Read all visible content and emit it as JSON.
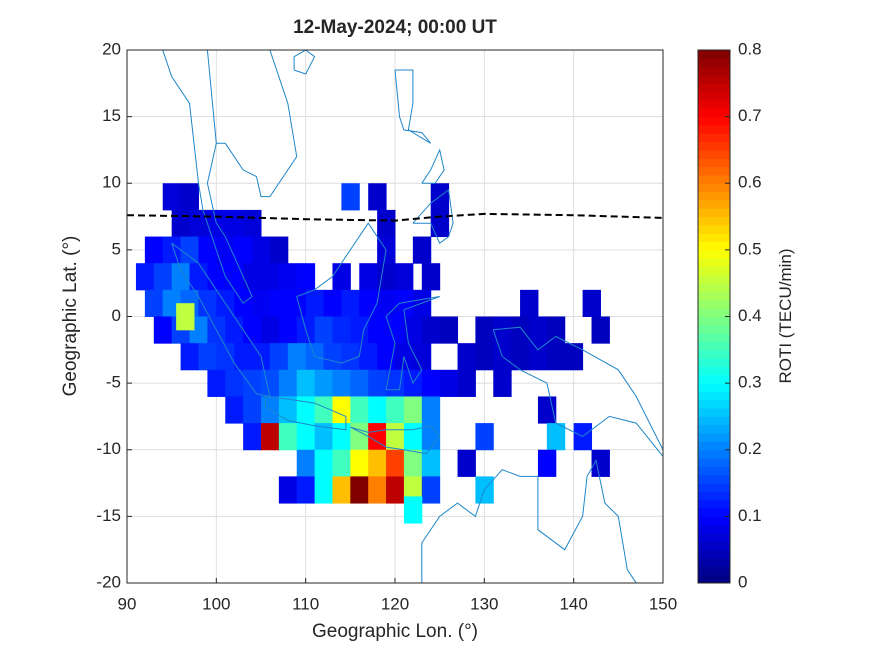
{
  "chart_data": {
    "type": "heatmap",
    "title": "12-May-2024; 00:00 UT",
    "x_label": "Geographic Lon. (°)",
    "y_label": "Geographic Lat. (°)",
    "colorbar_label": "ROTI (TECU/min)",
    "colormap": "jet",
    "xlim": [
      90,
      150
    ],
    "xticks": [
      90,
      100,
      110,
      120,
      130,
      140,
      150
    ],
    "ylim": [
      -20,
      20
    ],
    "yticks": [
      -20,
      -15,
      -10,
      -5,
      0,
      5,
      10,
      15,
      20
    ],
    "clim": [
      0,
      0.8
    ],
    "cticks": [
      0,
      0.1,
      0.2,
      0.3,
      0.4,
      0.5,
      0.6,
      0.7,
      0.8
    ],
    "grid": true,
    "x": [
      95,
      97,
      115,
      118,
      125,
      96,
      98,
      100,
      102,
      104,
      119,
      125,
      93,
      95,
      97,
      99,
      101,
      103,
      105,
      107,
      119,
      123,
      92,
      94,
      96,
      98,
      100,
      102,
      104,
      106,
      108,
      110,
      114,
      117,
      119,
      121,
      124,
      93,
      95,
      97,
      99,
      101,
      103,
      105,
      107,
      109,
      111,
      113,
      115,
      117,
      119,
      121,
      123,
      135,
      142,
      94,
      96,
      98,
      100,
      102,
      104,
      106,
      108,
      110,
      112,
      114,
      116,
      118,
      120,
      122,
      124,
      126,
      130,
      132,
      134,
      136,
      138,
      143,
      97,
      99,
      101,
      103,
      105,
      107,
      109,
      111,
      113,
      115,
      117,
      119,
      121,
      123,
      128,
      130,
      132,
      134,
      136,
      138,
      140,
      100,
      102,
      104,
      106,
      108,
      110,
      112,
      114,
      116,
      118,
      120,
      122,
      124,
      126,
      128,
      132,
      102,
      104,
      106,
      108,
      110,
      112,
      114,
      116,
      118,
      120,
      122,
      124,
      137,
      104,
      106,
      108,
      110,
      112,
      114,
      116,
      118,
      120,
      122,
      124,
      130,
      138,
      141,
      110,
      112,
      114,
      116,
      118,
      120,
      122,
      124,
      128,
      137,
      143,
      108,
      110,
      112,
      114,
      116,
      118,
      120,
      122,
      124,
      130,
      122,
      96.5
    ],
    "y": [
      9,
      9,
      9,
      9,
      9,
      7,
      7,
      7,
      7,
      7,
      7,
      7,
      5,
      5,
      5,
      5,
      5,
      5,
      5,
      5,
      5,
      5,
      3,
      3,
      3,
      3,
      3,
      3,
      3,
      3,
      3,
      3,
      3,
      3,
      3,
      3,
      3,
      1,
      1,
      1,
      1,
      1,
      1,
      1,
      1,
      1,
      1,
      1,
      1,
      1,
      1,
      1,
      1,
      1,
      1,
      -1,
      -1,
      -1,
      -1,
      -1,
      -1,
      -1,
      -1,
      -1,
      -1,
      -1,
      -1,
      -1,
      -1,
      -1,
      -1,
      -1,
      -1,
      -1,
      -1,
      -1,
      -1,
      -1,
      -3,
      -3,
      -3,
      -3,
      -3,
      -3,
      -3,
      -3,
      -3,
      -3,
      -3,
      -3,
      -3,
      -3,
      -3,
      -3,
      -3,
      -3,
      -3,
      -3,
      -3,
      -5,
      -5,
      -5,
      -5,
      -5,
      -5,
      -5,
      -5,
      -5,
      -5,
      -5,
      -5,
      -5,
      -5,
      -5,
      -5,
      -7,
      -7,
      -7,
      -7,
      -7,
      -7,
      -7,
      -7,
      -7,
      -7,
      -7,
      -7,
      -7,
      -9,
      -9,
      -9,
      -9,
      -9,
      -9,
      -9,
      -9,
      -9,
      -9,
      -9,
      -9,
      -9,
      -9,
      -11,
      -11,
      -11,
      -11,
      -11,
      -11,
      -11,
      -11,
      -11,
      -11,
      -11,
      -13,
      -13,
      -13,
      -13,
      -13,
      -13,
      -13,
      -13,
      -13,
      -13,
      -14.5,
      0
    ],
    "values": [
      0.07,
      0.06,
      0.15,
      0.06,
      0.06,
      0.06,
      0.07,
      0.08,
      0.08,
      0.07,
      0.06,
      0.06,
      0.1,
      0.12,
      0.15,
      0.1,
      0.09,
      0.1,
      0.08,
      0.06,
      0.07,
      0.06,
      0.12,
      0.15,
      0.2,
      0.12,
      0.1,
      0.1,
      0.08,
      0.08,
      0.09,
      0.1,
      0.08,
      0.08,
      0.06,
      0.07,
      0.06,
      0.15,
      0.2,
      0.18,
      0.14,
      0.12,
      0.1,
      0.09,
      0.1,
      0.1,
      0.12,
      0.1,
      0.12,
      0.1,
      0.09,
      0.1,
      0.08,
      0.06,
      0.06,
      0.1,
      0.15,
      0.2,
      0.14,
      0.12,
      0.1,
      0.08,
      0.1,
      0.12,
      0.15,
      0.13,
      0.12,
      0.1,
      0.1,
      0.08,
      0.06,
      0.05,
      0.05,
      0.06,
      0.05,
      0.06,
      0.05,
      0.05,
      0.12,
      0.15,
      0.14,
      0.12,
      0.12,
      0.15,
      0.2,
      0.18,
      0.15,
      0.14,
      0.12,
      0.1,
      0.08,
      0.07,
      0.06,
      0.05,
      0.06,
      0.05,
      0.06,
      0.05,
      0.05,
      0.12,
      0.14,
      0.15,
      0.16,
      0.2,
      0.25,
      0.22,
      0.2,
      0.18,
      0.15,
      0.14,
      0.12,
      0.1,
      0.08,
      0.06,
      0.06,
      0.12,
      0.15,
      0.2,
      0.25,
      0.3,
      0.35,
      0.5,
      0.35,
      0.3,
      0.35,
      0.4,
      0.2,
      0.06,
      0.12,
      0.75,
      0.35,
      0.3,
      0.25,
      0.3,
      0.4,
      0.7,
      0.45,
      0.3,
      0.2,
      0.15,
      0.25,
      0.12,
      0.2,
      0.3,
      0.35,
      0.5,
      0.55,
      0.65,
      0.4,
      0.25,
      0.06,
      0.1,
      0.06,
      0.08,
      0.12,
      0.3,
      0.55,
      0.8,
      0.6,
      0.75,
      0.45,
      0.15,
      0.25,
      0.3,
      0.45
    ]
  }
}
